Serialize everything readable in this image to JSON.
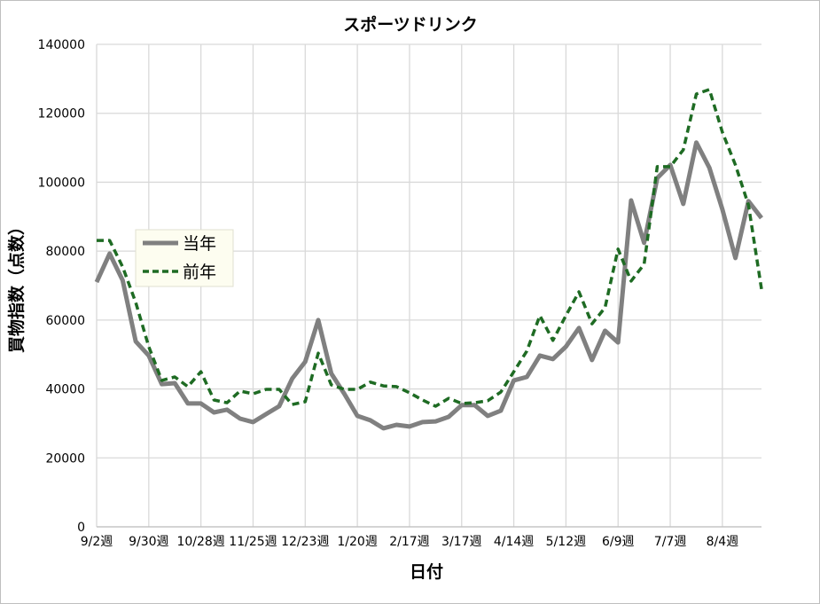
{
  "chart_data": {
    "type": "line",
    "title": "スポーツドリンク",
    "xlabel": "日付",
    "ylabel": "買物指数（点数）",
    "ylim": [
      0,
      140000
    ],
    "yticks": [
      0,
      20000,
      40000,
      60000,
      80000,
      100000,
      120000,
      140000
    ],
    "ytick_labels": [
      "0",
      "20000",
      "40000",
      "60000",
      "80000",
      "100000",
      "120000",
      "140000"
    ],
    "xtick_labels": [
      "9/2週",
      "9/30週",
      "10/28週",
      "11/25週",
      "12/23週",
      "1/20週",
      "2/17週",
      "3/17週",
      "4/14週",
      "5/12週",
      "6/9週",
      "7/7週",
      "8/4週"
    ],
    "xtick_every": 4,
    "n_points": 52,
    "grid": true,
    "legend_position": "upper-left",
    "series": [
      {
        "name": "当年",
        "color": "#808080",
        "style": "solid",
        "values": [
          71000,
          79300,
          71500,
          53800,
          49700,
          41400,
          41700,
          35800,
          35800,
          33200,
          34000,
          31400,
          30400,
          32700,
          35000,
          43000,
          47900,
          60000,
          44500,
          38600,
          32200,
          30900,
          28600,
          29600,
          29100,
          30400,
          30600,
          31900,
          35300,
          35300,
          32200,
          33700,
          42500,
          43500,
          49700,
          48700,
          52300,
          57700,
          48400,
          56900,
          53500,
          94700,
          82400,
          101200,
          105000,
          93700,
          111500,
          104200,
          92100,
          78000,
          94500,
          89600
        ]
      },
      {
        "name": "前年",
        "color": "#1e6b23",
        "style": "dashed",
        "values": [
          83100,
          83100,
          75400,
          65100,
          52300,
          42500,
          43500,
          40700,
          45000,
          36800,
          36000,
          39400,
          38600,
          39900,
          39900,
          35500,
          36300,
          50400,
          41200,
          39900,
          39900,
          42000,
          40900,
          40700,
          38900,
          36800,
          35000,
          37300,
          35800,
          36000,
          36600,
          39100,
          45000,
          51000,
          61300,
          54100,
          61300,
          68200,
          58900,
          63600,
          80600,
          71300,
          76200,
          104500,
          104500,
          109400,
          125600,
          126900,
          114500,
          105000,
          93400,
          69000
        ]
      }
    ]
  }
}
